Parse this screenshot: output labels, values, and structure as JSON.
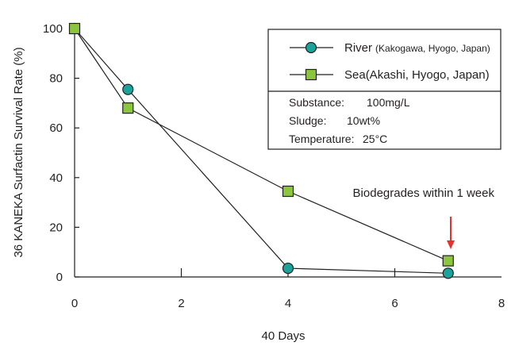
{
  "chart_data": {
    "type": "line",
    "xlabel": "40  Days",
    "ylabel": "36  KANEKA Surfactin Survival Rate (%)",
    "xlim": [
      0,
      8
    ],
    "ylim": [
      0,
      100
    ],
    "xticks": [
      "0",
      "2",
      "4",
      "6",
      "8"
    ],
    "yticks": [
      "0",
      "20",
      "40",
      "60",
      "80",
      "100"
    ],
    "grid": false,
    "legend_position": "top-right",
    "series": [
      {
        "name": "River",
        "name_detail": "(Kakogawa, Hyogo, Japan)",
        "marker": "circle",
        "color": "#1aa39a",
        "x": [
          0,
          1,
          4,
          7
        ],
        "y": [
          100,
          75.5,
          3.5,
          1.5
        ]
      },
      {
        "name": "Sea(Akashi, Hyogo, Japan)",
        "marker": "square",
        "color": "#8cc63f",
        "x": [
          0,
          1,
          4,
          7
        ],
        "y": [
          100,
          68,
          34.5,
          6.5
        ]
      }
    ],
    "conditions": [
      {
        "label": "Substance:",
        "value": "100mg/L"
      },
      {
        "label": "Sludge:",
        "value": "10wt%"
      },
      {
        "label": "Temperature:",
        "value": "25°C"
      }
    ],
    "annotation": {
      "text": "Biodegrades within 1 week",
      "color": "#e8312f",
      "x": 7,
      "y": 6.5
    }
  }
}
